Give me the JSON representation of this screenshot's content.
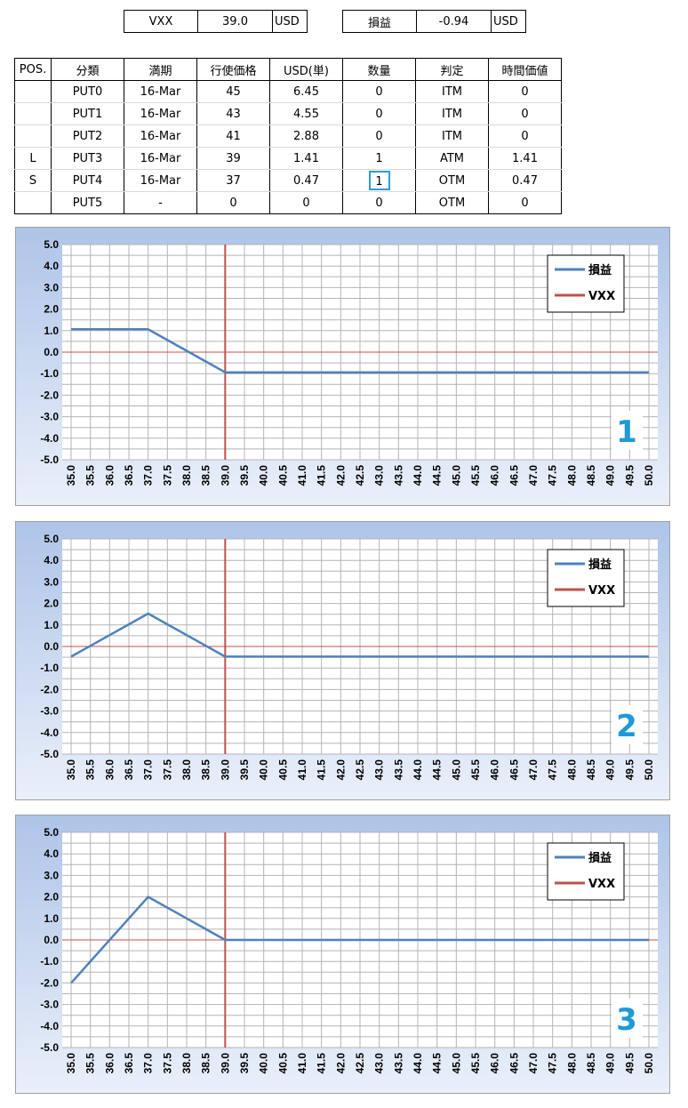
{
  "header": {
    "vxx_label": "VXX",
    "vxx_value": "39.0",
    "vxx_unit": "USD",
    "pl_label": "損益",
    "pl_value": "-0.94",
    "pl_unit": "USD"
  },
  "table": {
    "columns": [
      "POS.",
      "分類",
      "満期",
      "行使価格",
      "USD(単)",
      "数量",
      "判定",
      "時間価値"
    ],
    "rows": [
      [
        "",
        "PUT0",
        "16-Mar",
        "45",
        "6.45",
        "0",
        "ITM",
        "0"
      ],
      [
        "",
        "PUT1",
        "16-Mar",
        "43",
        "4.55",
        "0",
        "ITM",
        "0"
      ],
      [
        "",
        "PUT2",
        "16-Mar",
        "41",
        "2.88",
        "0",
        "ITM",
        "0"
      ],
      [
        "L",
        "PUT3",
        "16-Mar",
        "39",
        "1.41",
        "1",
        "ATM",
        "1.41"
      ],
      [
        "S",
        "PUT4",
        "16-Mar",
        "37",
        "0.47",
        "1",
        "OTM",
        "0.47"
      ],
      [
        "",
        "PUT5",
        "-",
        "0",
        "0",
        "0",
        "OTM",
        "0"
      ]
    ]
  },
  "colors": {
    "pl_line": "#4f81bd",
    "vxx_line": "#c0504d",
    "highlight_box": "#2e9bd6",
    "chart_number": "#1e9ad6"
  },
  "chart_data": [
    {
      "type": "line",
      "number_label": "1",
      "x": [
        35.0,
        35.5,
        36.0,
        36.5,
        37.0,
        37.5,
        38.0,
        38.5,
        39.0,
        39.5,
        40.0,
        40.5,
        41.0,
        41.5,
        42.0,
        42.5,
        43.0,
        43.5,
        44.0,
        44.5,
        45.0,
        45.5,
        46.0,
        46.5,
        47.0,
        47.5,
        48.0,
        48.5,
        49.0,
        49.5,
        50.0
      ],
      "x_tick_labels": [
        "35.0",
        "35.5",
        "36.0",
        "36.5",
        "37.0",
        "37.5",
        "38.0",
        "38.5",
        "39.0",
        "39.5",
        "40.0",
        "40.5",
        "41.0",
        "41.5",
        "42.0",
        "42.5",
        "43.0",
        "43.5",
        "44.0",
        "44.5",
        "45.0",
        "45.5",
        "46.0",
        "46.5",
        "47.0",
        "47.5",
        "48.0",
        "48.5",
        "49.0",
        "49.5",
        "50.0"
      ],
      "y_tick_labels": [
        "5.0",
        "4.0",
        "3.0",
        "2.0",
        "1.0",
        "0.0",
        "-1.0",
        "-2.0",
        "-3.0",
        "-4.0",
        "-5.0"
      ],
      "ylim": [
        -5,
        5
      ],
      "grid": true,
      "legend_position": "top-right",
      "series": [
        {
          "name": "損益",
          "color": "#4f81bd",
          "values": [
            1.06,
            1.06,
            1.06,
            1.06,
            1.06,
            0.56,
            0.06,
            -0.44,
            -0.94,
            -0.94,
            -0.94,
            -0.94,
            -0.94,
            -0.94,
            -0.94,
            -0.94,
            -0.94,
            -0.94,
            -0.94,
            -0.94,
            -0.94,
            -0.94,
            -0.94,
            -0.94,
            -0.94,
            -0.94,
            -0.94,
            -0.94,
            -0.94,
            -0.94,
            -0.94
          ]
        },
        {
          "name": "VXX",
          "color": "#c0504d",
          "vertical_at": 39.0
        }
      ]
    },
    {
      "type": "line",
      "number_label": "2",
      "x": [
        35.0,
        35.5,
        36.0,
        36.5,
        37.0,
        37.5,
        38.0,
        38.5,
        39.0,
        39.5,
        40.0,
        40.5,
        41.0,
        41.5,
        42.0,
        42.5,
        43.0,
        43.5,
        44.0,
        44.5,
        45.0,
        45.5,
        46.0,
        46.5,
        47.0,
        47.5,
        48.0,
        48.5,
        49.0,
        49.5,
        50.0
      ],
      "x_tick_labels": [
        "35.0",
        "35.5",
        "36.0",
        "36.5",
        "37.0",
        "37.5",
        "38.0",
        "38.5",
        "39.0",
        "39.5",
        "40.0",
        "40.5",
        "41.0",
        "41.5",
        "42.0",
        "42.5",
        "43.0",
        "43.5",
        "44.0",
        "44.5",
        "45.0",
        "45.5",
        "46.0",
        "46.5",
        "47.0",
        "47.5",
        "48.0",
        "48.5",
        "49.0",
        "49.5",
        "50.0"
      ],
      "y_tick_labels": [
        "5.0",
        "4.0",
        "3.0",
        "2.0",
        "1.0",
        "0.0",
        "-1.0",
        "-2.0",
        "-3.0",
        "-4.0",
        "-5.0"
      ],
      "ylim": [
        -5,
        5
      ],
      "grid": true,
      "legend_position": "top-right",
      "series": [
        {
          "name": "損益",
          "color": "#4f81bd",
          "values": [
            -0.47,
            0.03,
            0.53,
            1.03,
            1.53,
            1.03,
            0.53,
            0.03,
            -0.47,
            -0.47,
            -0.47,
            -0.47,
            -0.47,
            -0.47,
            -0.47,
            -0.47,
            -0.47,
            -0.47,
            -0.47,
            -0.47,
            -0.47,
            -0.47,
            -0.47,
            -0.47,
            -0.47,
            -0.47,
            -0.47,
            -0.47,
            -0.47,
            -0.47,
            -0.47
          ]
        },
        {
          "name": "VXX",
          "color": "#c0504d",
          "vertical_at": 39.0
        }
      ]
    },
    {
      "type": "line",
      "number_label": "3",
      "x": [
        35.0,
        35.5,
        36.0,
        36.5,
        37.0,
        37.5,
        38.0,
        38.5,
        39.0,
        39.5,
        40.0,
        40.5,
        41.0,
        41.5,
        42.0,
        42.5,
        43.0,
        43.5,
        44.0,
        44.5,
        45.0,
        45.5,
        46.0,
        46.5,
        47.0,
        47.5,
        48.0,
        48.5,
        49.0,
        49.5,
        50.0
      ],
      "x_tick_labels": [
        "35.0",
        "35.5",
        "36.0",
        "36.5",
        "37.0",
        "37.5",
        "38.0",
        "38.5",
        "39.0",
        "39.5",
        "40.0",
        "40.5",
        "41.0",
        "41.5",
        "42.0",
        "42.5",
        "43.0",
        "43.5",
        "44.0",
        "44.5",
        "45.0",
        "45.5",
        "46.0",
        "46.5",
        "47.0",
        "47.5",
        "48.0",
        "48.5",
        "49.0",
        "49.5",
        "50.0"
      ],
      "y_tick_labels": [
        "5.0",
        "4.0",
        "3.0",
        "2.0",
        "1.0",
        "0.0",
        "-1.0",
        "-2.0",
        "-3.0",
        "-4.0",
        "-5.0"
      ],
      "ylim": [
        -5,
        5
      ],
      "grid": true,
      "legend_position": "top-right",
      "series": [
        {
          "name": "損益",
          "color": "#4f81bd",
          "values": [
            -2.0,
            -1.0,
            0.0,
            1.0,
            2.0,
            1.5,
            1.0,
            0.5,
            0.0,
            0.0,
            0.0,
            0.0,
            0.0,
            0.0,
            0.0,
            0.0,
            0.0,
            0.0,
            0.0,
            0.0,
            0.0,
            0.0,
            0.0,
            0.0,
            0.0,
            0.0,
            0.0,
            0.0,
            0.0,
            0.0,
            0.0
          ]
        },
        {
          "name": "VXX",
          "color": "#c0504d",
          "vertical_at": 39.0
        }
      ]
    }
  ]
}
